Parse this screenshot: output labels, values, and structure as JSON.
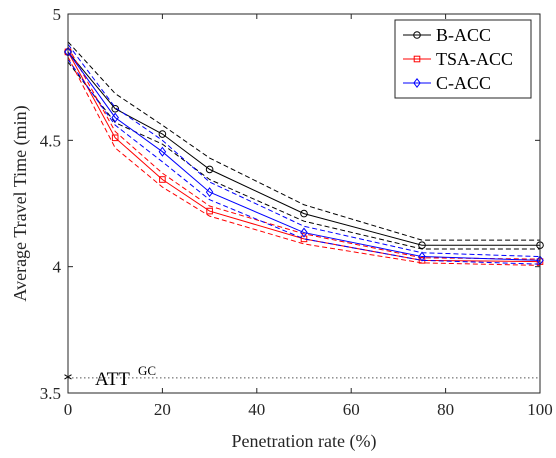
{
  "chart_data": {
    "type": "line",
    "title": "",
    "xlabel": "Penetration rate (%)",
    "ylabel": "Average Travel Time (min)",
    "xlim": [
      0,
      100
    ],
    "ylim": [
      3.5,
      5
    ],
    "xticks": [
      0,
      20,
      40,
      60,
      80,
      100
    ],
    "yticks": [
      3.5,
      4,
      4.5,
      5
    ],
    "ytick_labels": [
      "3.5",
      "4",
      "4.5",
      "5"
    ],
    "grid": false,
    "legend_position": "top-right",
    "x": [
      0,
      10,
      20,
      30,
      50,
      75,
      100
    ],
    "series": [
      {
        "name": "B-ACC",
        "color": "#000000",
        "marker": "circle",
        "values": [
          4.85,
          4.625,
          4.525,
          4.385,
          4.21,
          4.085,
          4.085
        ],
        "upper": [
          4.89,
          4.685,
          4.56,
          4.43,
          4.245,
          4.105,
          4.105
        ],
        "lower": [
          4.81,
          4.57,
          4.485,
          4.345,
          4.18,
          4.07,
          4.07
        ]
      },
      {
        "name": "TSA-ACC",
        "color": "#ff0000",
        "marker": "square",
        "values": [
          4.85,
          4.51,
          4.345,
          4.22,
          4.11,
          4.025,
          4.02
        ],
        "upper": [
          4.87,
          4.535,
          4.37,
          4.24,
          4.13,
          4.035,
          4.03
        ],
        "lower": [
          4.83,
          4.47,
          4.315,
          4.2,
          4.09,
          4.015,
          4.005
        ]
      },
      {
        "name": "C-ACC",
        "color": "#0000ff",
        "marker": "diamond",
        "values": [
          4.85,
          4.59,
          4.455,
          4.295,
          4.135,
          4.04,
          4.025
        ],
        "upper": [
          4.88,
          4.63,
          4.5,
          4.335,
          4.16,
          4.055,
          4.04
        ],
        "lower": [
          4.82,
          4.56,
          4.415,
          4.265,
          4.11,
          4.025,
          4.01
        ]
      }
    ],
    "reference": {
      "label_base": "ATT",
      "label_sup": "GC",
      "value": 3.56,
      "x_start": 0,
      "color": "#555555"
    }
  }
}
